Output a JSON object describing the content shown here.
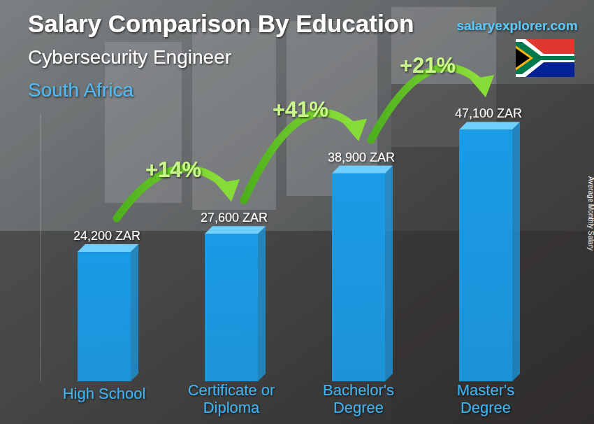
{
  "chart_data": {
    "type": "bar",
    "title": "Salary Comparison By Education",
    "subtitle": "Cybersecurity Engineer",
    "region": "South Africa",
    "source": "salaryexplorer.com",
    "y_label": "Average Monthly Salary",
    "categories": [
      "High School",
      "Certificate or Diploma",
      "Bachelor's Degree",
      "Master's Degree"
    ],
    "values": [
      24200,
      27600,
      38900,
      47100
    ],
    "value_labels": [
      "24,200 ZAR",
      "27,600 ZAR",
      "38,900 ZAR",
      "47,100 ZAR"
    ],
    "annotations": [
      "+14%",
      "+41%",
      "+21%"
    ],
    "color": "#1a9be6",
    "ylim": [
      0,
      50000
    ],
    "data_labels": true,
    "tick_labels": false,
    "grid": false
  }
}
